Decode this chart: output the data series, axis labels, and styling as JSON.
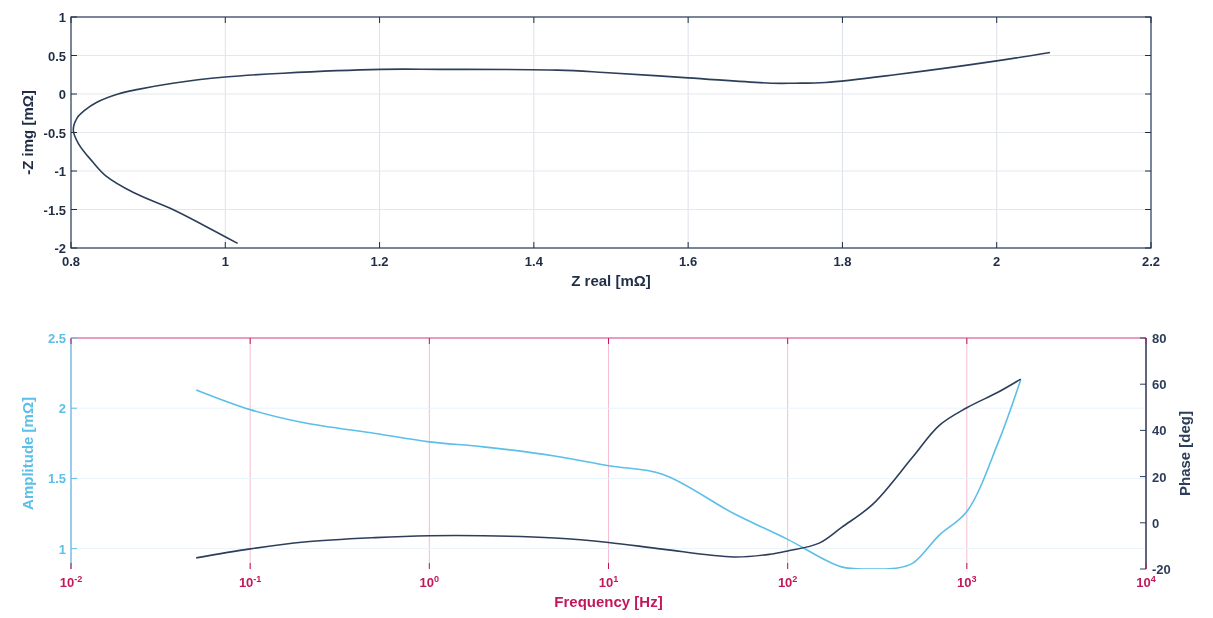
{
  "chart_data": [
    {
      "type": "line",
      "xlabel": "Z real [mΩ]",
      "ylabel": "-Z img [mΩ]",
      "xlim": [
        0.8,
        2.2
      ],
      "xticks": [
        0.8,
        1,
        1.2,
        1.4,
        1.6,
        1.8,
        2,
        2.2
      ],
      "ylim": [
        -2,
        1
      ],
      "yticks": [
        -2,
        -1.5,
        -1,
        -0.5,
        0,
        0.5,
        1
      ],
      "grid": true,
      "series": [
        {
          "color": "#2c3e5a",
          "x": [
            1.016,
            0.973,
            0.932,
            0.881,
            0.846,
            0.828,
            0.81,
            0.803,
            0.808,
            0.818,
            0.833,
            0.861,
            0.887,
            0.932,
            1.0,
            1.075,
            1.202,
            1.278,
            1.431,
            1.491,
            1.6,
            1.708,
            1.738,
            1.778,
            1.868,
            2.0,
            2.069
          ],
          "values": [
            -1.94,
            -1.71,
            -1.5,
            -1.28,
            -1.07,
            -0.88,
            -0.65,
            -0.47,
            -0.31,
            -0.21,
            -0.11,
            0.0,
            0.06,
            0.14,
            0.22,
            0.27,
            0.32,
            0.32,
            0.31,
            0.28,
            0.21,
            0.14,
            0.14,
            0.15,
            0.25,
            0.43,
            0.54
          ]
        }
      ]
    },
    {
      "type": "line",
      "xlabel": "Frequency [Hz]",
      "ylabel": "Amplitude [mΩ]",
      "y2label": "Phase [deg]",
      "log": "x",
      "xlim": [
        0.01,
        10000
      ],
      "xticks": [
        {
          "value": 0.01,
          "label": "10$^{-2}$"
        },
        {
          "value": 0.1,
          "label": "10$^{-1}$"
        },
        {
          "value": 1,
          "label": "10$^{0}$"
        },
        {
          "value": 10,
          "label": "10$^{1}$"
        },
        {
          "value": 100,
          "label": "10$^{2}$"
        },
        {
          "value": 1000,
          "label": "10$^{3}$"
        },
        {
          "value": 10000,
          "label": "10$^{4}$"
        }
      ],
      "ylim": [
        0.855,
        2.5
      ],
      "yticks": [
        1,
        1.5,
        2,
        2.5
      ],
      "y2lim": [
        -20,
        80
      ],
      "y2ticks": [
        -20,
        0,
        20,
        40,
        60,
        80
      ],
      "grid": true,
      "series": [
        {
          "color": "#5bbfe8",
          "x": [
            0.05,
            0.1,
            0.2,
            0.5,
            1,
            2,
            5,
            10,
            20,
            50,
            100,
            200,
            300,
            400,
            500,
            700,
            1000,
            1500,
            2000
          ],
          "values": [
            2.13,
            1.99,
            1.896,
            1.82,
            1.76,
            1.725,
            1.66,
            1.59,
            1.53,
            1.25,
            1.066,
            0.87,
            0.855,
            0.86,
            0.897,
            1.095,
            1.264,
            1.76,
            2.205
          ]
        },
        {
          "color": "#2c3e5a",
          "axis": "y2",
          "x": [
            0.05,
            0.1,
            0.2,
            0.5,
            1,
            2,
            5,
            10,
            20,
            50,
            80,
            100,
            150,
            200,
            300,
            500,
            700,
            1000,
            1500,
            2000
          ],
          "values": [
            -15.2,
            -11.3,
            -8.3,
            -6.4,
            -5.6,
            -5.6,
            -6.6,
            -8.5,
            -11.4,
            -14.8,
            -13.6,
            -12.2,
            -8.8,
            -2,
            8.2,
            28.6,
            42.1,
            49.8,
            56.6,
            62.2
          ]
        }
      ]
    }
  ]
}
